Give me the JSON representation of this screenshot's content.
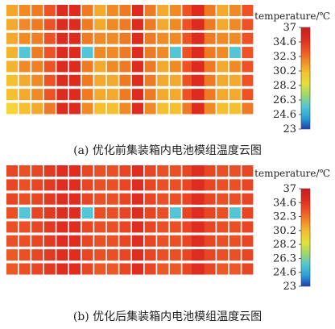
{
  "chart_data": [
    {
      "type": "heatmap",
      "caption": "(a) 优化前集装箱内电池模组温度云图",
      "colorbar": {
        "title": "temperature/℃",
        "range": [
          23,
          37
        ],
        "ticks": [
          "37",
          "34.6",
          "32.3",
          "30.2",
          "28.2",
          "26.3",
          "24.6",
          "23"
        ]
      },
      "groups": [
        {
          "rows": [
            [
              "#f4a52a",
              "#f08a25",
              "#f07a22",
              "#ee5124",
              "#dd2b20"
            ],
            [
              "#f3a92d",
              "#f0892a",
              "#f07a22",
              "#ee5124",
              "#dd2b20"
            ],
            [
              "#f3a92d",
              "#f08a25",
              "#ef7f24",
              "#ee5124",
              "#dd2b20"
            ],
            [
              "#f4b32f",
              "#53c5d4",
              "#ef7a24",
              "#ee5124",
              "#dd2b20"
            ],
            [
              "#f4b32f",
              "#f0892a",
              "#ef7f24",
              "#ee5124",
              "#dd2b20"
            ],
            [
              "#f5c02f",
              "#f3a92d",
              "#f08a25",
              "#ee5124",
              "#dd2b20"
            ],
            [
              "#f5c02f",
              "#f3a92d",
              "#f08a25",
              "#ee5124",
              "#dd2b20"
            ],
            [
              "#f7d33a",
              "#f5c02f",
              "#f3a92d",
              "#ee7a28",
              "#dd2b20"
            ]
          ]
        },
        {
          "rows": [
            [
              "#dd2b20",
              "#ef7a24",
              "#f3a92d",
              "#f08a25",
              "#ef7a24",
              "#dd2b20",
              "#ef7a24",
              "#f3a92d",
              "#f08a25",
              "#ee5124",
              "#dd2b20"
            ],
            [
              "#dd2b20",
              "#ef7a24",
              "#f3a92d",
              "#f08a25",
              "#ef7a24",
              "#dd2b20",
              "#ef7a24",
              "#f3a92d",
              "#f08a25",
              "#ee5124",
              "#dd2b20"
            ],
            [
              "#dd2b20",
              "#ef7a24",
              "#f08a25",
              "#f08a25",
              "#ef7a24",
              "#dd2b20",
              "#ef7a24",
              "#f08a25",
              "#f08a25",
              "#ee5124",
              "#dd2b20"
            ],
            [
              "#dd2b20",
              "#53c5d4",
              "#f08a25",
              "#f08a25",
              "#ef7a24",
              "#dd2b20",
              "#ef7a24",
              "#f08a25",
              "#53c5d4",
              "#ee5124",
              "#dd2b20"
            ],
            [
              "#dd2b20",
              "#ef7a24",
              "#f3a92d",
              "#f08a25",
              "#ef7a24",
              "#dd2b20",
              "#ef7a24",
              "#f3a92d",
              "#f08a25",
              "#ee5124",
              "#dd2b20"
            ],
            [
              "#dd2b20",
              "#ef7a24",
              "#f3a92d",
              "#f3a92d",
              "#ef7a24",
              "#dd2b20",
              "#ef7a24",
              "#f3a92d",
              "#f3a92d",
              "#ee5124",
              "#dd2b20"
            ],
            [
              "#dd2b20",
              "#ef7a24",
              "#f3a92d",
              "#f3a92d",
              "#ef7a24",
              "#dd2b20",
              "#ef7a24",
              "#f3a92d",
              "#f3a92d",
              "#ee5124",
              "#dd2b20"
            ],
            [
              "#dd2b20",
              "#f08a25",
              "#f5c02f",
              "#f5c02f",
              "#f08a25",
              "#dd2b20",
              "#f08a25",
              "#f5c02f",
              "#f5c02f",
              "#ee7a28",
              "#dd2b20"
            ]
          ]
        },
        {
          "rows": [
            [
              "#dd2b20",
              "#ef7a24",
              "#f3a92d",
              "#f08a25",
              "#ee5124"
            ],
            [
              "#dd2b20",
              "#ef7a24",
              "#f3a92d",
              "#f08a25",
              "#ee5124"
            ],
            [
              "#dd2b20",
              "#ef7a24",
              "#f08a25",
              "#f08a25",
              "#ee5124"
            ],
            [
              "#dd2b20",
              "#ef7a24",
              "#f08a25",
              "#53c5d4",
              "#ee5124"
            ],
            [
              "#dd2b20",
              "#ef7a24",
              "#f3a92d",
              "#f08a25",
              "#ee5124"
            ],
            [
              "#dd2b20",
              "#ef7a24",
              "#f3a92d",
              "#f3a92d",
              "#ee5124"
            ],
            [
              "#dd2b20",
              "#ef7a24",
              "#f3a92d",
              "#f3a92d",
              "#ee5124"
            ],
            [
              "#dd2b20",
              "#f08a25",
              "#f5c02f",
              "#f5c02f",
              "#ee7a28"
            ]
          ]
        }
      ]
    },
    {
      "type": "heatmap",
      "caption": "(b) 优化后集装箱内电池模组温度云图",
      "colorbar": {
        "title": "temperature/℃",
        "range": [
          23,
          37
        ],
        "ticks": [
          "37",
          "34.6",
          "32.3",
          "30.2",
          "28.2",
          "26.3",
          "24.6",
          "23"
        ]
      },
      "groups": [
        {
          "rows": [
            [
              "#e84524",
              "#ea4f25",
              "#e84524",
              "#e23a22",
              "#de2c21"
            ],
            [
              "#e84524",
              "#ea4f25",
              "#e84524",
              "#e23a22",
              "#de2c21"
            ],
            [
              "#e84524",
              "#ea4f25",
              "#e84524",
              "#e23a22",
              "#de2c21"
            ],
            [
              "#ea4f25",
              "#53c5d4",
              "#e84524",
              "#e23a22",
              "#de2c21"
            ],
            [
              "#ea4f25",
              "#ea4f25",
              "#e84524",
              "#e23a22",
              "#de2c21"
            ],
            [
              "#ea4f25",
              "#ea4f25",
              "#e84524",
              "#e23a22",
              "#de2c21"
            ],
            [
              "#ec5826",
              "#ea4f25",
              "#e84524",
              "#e23a22",
              "#de2c21"
            ],
            [
              "#ec5826",
              "#ea4f25",
              "#e84524",
              "#e23a22",
              "#de2c21"
            ]
          ]
        },
        {
          "rows": [
            [
              "#de2c21",
              "#e84524",
              "#ea4f25",
              "#ea4f25",
              "#e84524",
              "#de2c21",
              "#e84524",
              "#ea4f25",
              "#ea4f25",
              "#e84524",
              "#de2c21"
            ],
            [
              "#de2c21",
              "#e84524",
              "#ea4f25",
              "#ea4f25",
              "#e84524",
              "#de2c21",
              "#e84524",
              "#ea4f25",
              "#ea4f25",
              "#e84524",
              "#de2c21"
            ],
            [
              "#de2c21",
              "#e84524",
              "#ea4f25",
              "#ea4f25",
              "#e84524",
              "#de2c21",
              "#e84524",
              "#ea4f25",
              "#ea4f25",
              "#e84524",
              "#de2c21"
            ],
            [
              "#de2c21",
              "#53c5d4",
              "#ea4f25",
              "#ea4f25",
              "#e84524",
              "#de2c21",
              "#e84524",
              "#ea4f25",
              "#53c5d4",
              "#e84524",
              "#de2c21"
            ],
            [
              "#de2c21",
              "#e84524",
              "#ea4f25",
              "#ea4f25",
              "#e84524",
              "#de2c21",
              "#e84524",
              "#ea4f25",
              "#ea4f25",
              "#e84524",
              "#de2c21"
            ],
            [
              "#de2c21",
              "#e84524",
              "#ea4f25",
              "#ea4f25",
              "#e84524",
              "#de2c21",
              "#e84524",
              "#ea4f25",
              "#ea4f25",
              "#e84524",
              "#de2c21"
            ],
            [
              "#de2c21",
              "#e84524",
              "#ea4f25",
              "#ea4f25",
              "#e84524",
              "#de2c21",
              "#e84524",
              "#ea4f25",
              "#ea4f25",
              "#e84524",
              "#de2c21"
            ],
            [
              "#de2c21",
              "#e84524",
              "#ec5826",
              "#ec5826",
              "#e84524",
              "#de2c21",
              "#e84524",
              "#ec5826",
              "#ec5826",
              "#e84524",
              "#de2c21"
            ]
          ]
        },
        {
          "rows": [
            [
              "#de2c21",
              "#e84524",
              "#ea4f25",
              "#ea4f25",
              "#e84524"
            ],
            [
              "#de2c21",
              "#e84524",
              "#ea4f25",
              "#ea4f25",
              "#e84524"
            ],
            [
              "#de2c21",
              "#e84524",
              "#ea4f25",
              "#ea4f25",
              "#e84524"
            ],
            [
              "#de2c21",
              "#e84524",
              "#ea4f25",
              "#53c5d4",
              "#e84524"
            ],
            [
              "#de2c21",
              "#e84524",
              "#ea4f25",
              "#ea4f25",
              "#e84524"
            ],
            [
              "#de2c21",
              "#e84524",
              "#ea4f25",
              "#ea4f25",
              "#e84524"
            ],
            [
              "#de2c21",
              "#e84524",
              "#ea4f25",
              "#ea4f25",
              "#e84524"
            ],
            [
              "#de2c21",
              "#e84524",
              "#ec5826",
              "#ec5826",
              "#e84524"
            ]
          ]
        }
      ]
    }
  ],
  "colormap": [
    "#1f3fb0",
    "#2aa0d8",
    "#53c5d4",
    "#9cd86a",
    "#e2e23a",
    "#f5c02f",
    "#f08a25",
    "#ee5124",
    "#dd2b20",
    "#c81e1e"
  ]
}
